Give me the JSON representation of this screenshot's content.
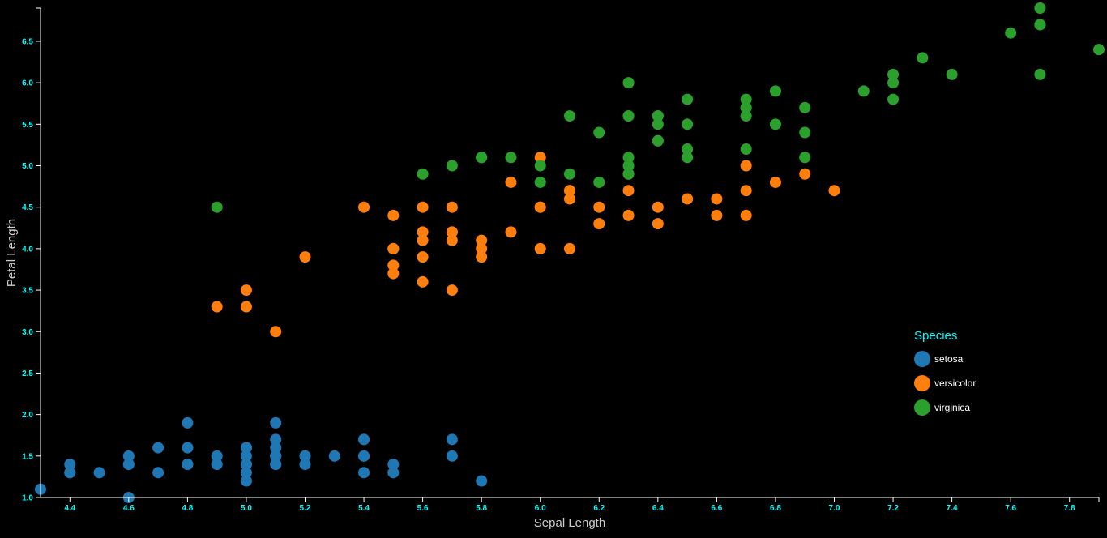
{
  "chart_data": {
    "type": "scatter",
    "title": "",
    "xlabel": "Sepal Length",
    "ylabel": "Petal Length",
    "xlim": [
      4.3,
      7.9
    ],
    "ylim": [
      1.0,
      6.9
    ],
    "x_ticks": [
      "4.4",
      "4.6",
      "4.8",
      "5.0",
      "5.2",
      "5.4",
      "5.6",
      "5.8",
      "6.0",
      "6.2",
      "6.4",
      "6.6",
      "6.8",
      "7.0",
      "7.2",
      "7.4",
      "7.6",
      "7.8"
    ],
    "y_ticks": [
      "1.0",
      "1.5",
      "2.0",
      "2.5",
      "3.0",
      "3.5",
      "4.0",
      "4.5",
      "5.0",
      "5.5",
      "6.0",
      "6.5"
    ],
    "grid": false,
    "legend": {
      "title": "Species",
      "placement": "right"
    },
    "series": [
      {
        "name": "setosa",
        "color": "#1f77b4",
        "points": [
          [
            5.1,
            1.4
          ],
          [
            4.9,
            1.4
          ],
          [
            4.7,
            1.3
          ],
          [
            4.6,
            1.5
          ],
          [
            5.0,
            1.4
          ],
          [
            5.4,
            1.7
          ],
          [
            4.6,
            1.4
          ],
          [
            5.0,
            1.5
          ],
          [
            4.4,
            1.4
          ],
          [
            4.9,
            1.5
          ],
          [
            5.4,
            1.5
          ],
          [
            4.8,
            1.6
          ],
          [
            4.8,
            1.4
          ],
          [
            4.3,
            1.1
          ],
          [
            5.8,
            1.2
          ],
          [
            5.7,
            1.5
          ],
          [
            5.4,
            1.3
          ],
          [
            5.1,
            1.4
          ],
          [
            5.7,
            1.7
          ],
          [
            5.1,
            1.5
          ],
          [
            5.4,
            1.7
          ],
          [
            5.1,
            1.5
          ],
          [
            4.6,
            1.0
          ],
          [
            5.1,
            1.7
          ],
          [
            4.8,
            1.9
          ],
          [
            5.0,
            1.6
          ],
          [
            5.0,
            1.6
          ],
          [
            5.2,
            1.5
          ],
          [
            5.2,
            1.4
          ],
          [
            4.7,
            1.6
          ],
          [
            4.8,
            1.6
          ],
          [
            5.4,
            1.5
          ],
          [
            5.2,
            1.5
          ],
          [
            5.5,
            1.4
          ],
          [
            4.9,
            1.5
          ],
          [
            5.0,
            1.2
          ],
          [
            5.5,
            1.3
          ],
          [
            4.9,
            1.4
          ],
          [
            4.4,
            1.3
          ],
          [
            5.1,
            1.5
          ],
          [
            5.0,
            1.3
          ],
          [
            4.5,
            1.3
          ],
          [
            4.4,
            1.3
          ],
          [
            5.0,
            1.6
          ],
          [
            5.1,
            1.9
          ],
          [
            4.8,
            1.4
          ],
          [
            5.1,
            1.6
          ],
          [
            4.6,
            1.4
          ],
          [
            5.3,
            1.5
          ],
          [
            5.0,
            1.4
          ]
        ]
      },
      {
        "name": "versicolor",
        "color": "#ff7f0e",
        "points": [
          [
            7.0,
            4.7
          ],
          [
            6.4,
            4.5
          ],
          [
            6.9,
            4.9
          ],
          [
            5.5,
            4.0
          ],
          [
            6.5,
            4.6
          ],
          [
            5.7,
            4.5
          ],
          [
            6.3,
            4.7
          ],
          [
            4.9,
            3.3
          ],
          [
            6.6,
            4.6
          ],
          [
            5.2,
            3.9
          ],
          [
            5.0,
            3.5
          ],
          [
            5.9,
            4.2
          ],
          [
            6.0,
            4.0
          ],
          [
            6.1,
            4.7
          ],
          [
            5.6,
            3.6
          ],
          [
            6.7,
            4.4
          ],
          [
            5.6,
            4.5
          ],
          [
            5.8,
            4.1
          ],
          [
            6.2,
            4.5
          ],
          [
            5.6,
            3.9
          ],
          [
            5.9,
            4.8
          ],
          [
            6.1,
            4.0
          ],
          [
            6.3,
            4.9
          ],
          [
            6.1,
            4.7
          ],
          [
            6.4,
            4.3
          ],
          [
            6.6,
            4.4
          ],
          [
            6.8,
            4.8
          ],
          [
            6.7,
            5.0
          ],
          [
            6.0,
            4.5
          ],
          [
            5.7,
            3.5
          ],
          [
            5.5,
            3.8
          ],
          [
            5.5,
            3.7
          ],
          [
            5.8,
            3.9
          ],
          [
            6.0,
            5.1
          ],
          [
            5.4,
            4.5
          ],
          [
            6.0,
            4.5
          ],
          [
            6.7,
            4.7
          ],
          [
            6.3,
            4.4
          ],
          [
            5.6,
            4.1
          ],
          [
            5.5,
            4.0
          ],
          [
            5.5,
            4.4
          ],
          [
            6.1,
            4.6
          ],
          [
            5.8,
            4.0
          ],
          [
            5.0,
            3.3
          ],
          [
            5.6,
            4.2
          ],
          [
            5.7,
            4.2
          ],
          [
            5.7,
            4.2
          ],
          [
            6.2,
            4.3
          ],
          [
            5.1,
            3.0
          ],
          [
            5.7,
            4.1
          ]
        ]
      },
      {
        "name": "virginica",
        "color": "#2ca02c",
        "points": [
          [
            6.3,
            6.0
          ],
          [
            5.8,
            5.1
          ],
          [
            7.1,
            5.9
          ],
          [
            6.3,
            5.6
          ],
          [
            6.5,
            5.8
          ],
          [
            7.6,
            6.6
          ],
          [
            4.9,
            4.5
          ],
          [
            7.3,
            6.3
          ],
          [
            6.7,
            5.8
          ],
          [
            7.2,
            6.1
          ],
          [
            6.5,
            5.1
          ],
          [
            6.4,
            5.3
          ],
          [
            6.8,
            5.5
          ],
          [
            5.7,
            5.0
          ],
          [
            5.8,
            5.1
          ],
          [
            6.4,
            5.3
          ],
          [
            6.5,
            5.5
          ],
          [
            7.7,
            6.7
          ],
          [
            7.7,
            6.9
          ],
          [
            6.0,
            5.0
          ],
          [
            6.9,
            5.7
          ],
          [
            5.6,
            4.9
          ],
          [
            7.7,
            6.7
          ],
          [
            6.3,
            4.9
          ],
          [
            6.7,
            5.7
          ],
          [
            7.2,
            6.0
          ],
          [
            6.2,
            4.8
          ],
          [
            6.1,
            4.9
          ],
          [
            6.4,
            5.6
          ],
          [
            7.2,
            5.8
          ],
          [
            7.4,
            6.1
          ],
          [
            7.9,
            6.4
          ],
          [
            6.4,
            5.6
          ],
          [
            6.3,
            5.1
          ],
          [
            6.1,
            5.6
          ],
          [
            7.7,
            6.1
          ],
          [
            6.3,
            5.6
          ],
          [
            6.4,
            5.5
          ],
          [
            6.0,
            4.8
          ],
          [
            6.9,
            5.4
          ],
          [
            6.7,
            5.6
          ],
          [
            6.9,
            5.1
          ],
          [
            5.8,
            5.1
          ],
          [
            6.8,
            5.9
          ],
          [
            6.7,
            5.7
          ],
          [
            6.7,
            5.2
          ],
          [
            6.3,
            5.0
          ],
          [
            6.5,
            5.2
          ],
          [
            6.2,
            5.4
          ],
          [
            5.9,
            5.1
          ]
        ]
      }
    ]
  }
}
